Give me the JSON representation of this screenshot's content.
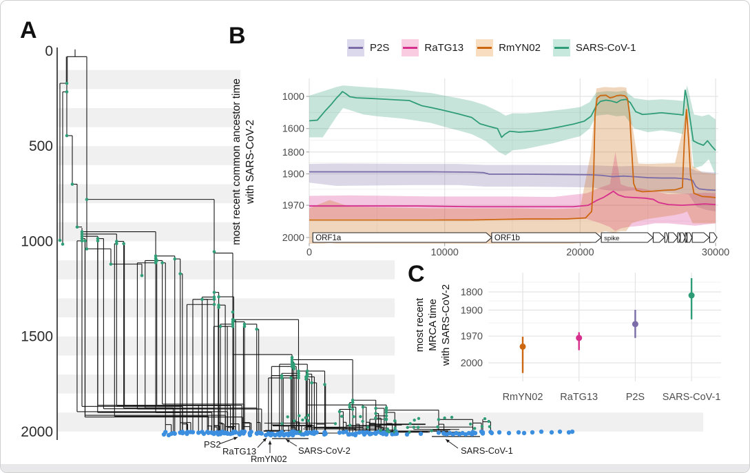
{
  "figure": {
    "panel_a_letter": "A",
    "panel_b_letter": "B",
    "panel_c_letter": "C"
  },
  "colors": {
    "p2s_line": "#7b6ca8",
    "p2s_fill": "#dcd9ec",
    "ratg13_line": "#d62e8c",
    "ratg13_fill": "#f9cce2",
    "rmyn02_line": "#cc660f",
    "rmyn02_fill": "#f8ddc0",
    "sars1_line": "#2e9c77",
    "sars1_fill": "#c7e8dc",
    "tip_blue": "#3c8ede",
    "node_green": "#2f9e77",
    "tree_line": "#141414",
    "grid_major": "#e3e3e3",
    "grid_minor": "#f1f1f1",
    "stripe": "#f0f0f0",
    "tick_text": "#4e4e4e",
    "axis_a_text": "#2b2b2b"
  },
  "legend": {
    "items": [
      {
        "label": "P2S",
        "line": "#7b6ca8",
        "fill": "#dcd9ec"
      },
      {
        "label": "RaTG13",
        "line": "#d62e8c",
        "fill": "#f9cce2"
      },
      {
        "label": "RmYN02",
        "line": "#cc660f",
        "fill": "#f8ddc0"
      },
      {
        "label": "SARS-CoV-1",
        "line": "#2e9c77",
        "fill": "#c7e8dc"
      }
    ]
  },
  "panel_b": {
    "ylabel_line1": "most recent common ancestor time",
    "ylabel_line2": "with SARS-CoV-2"
  },
  "panel_c": {
    "ylabel_line1": "most recent",
    "ylabel_line2": "MRCA time",
    "ylabel_line3": "with SARS-CoV-2"
  },
  "chart_data": [
    {
      "id": "panel_b_genome_scan",
      "type": "line",
      "title": "",
      "xlabel": "",
      "ylabel": "most recent common ancestor time with SARS-CoV-2",
      "x_ticks": [
        0,
        10000,
        20000,
        30000
      ],
      "x_minor_ticks": [
        5000,
        15000,
        25000
      ],
      "xlim": [
        0,
        30200
      ],
      "y_ticks": [
        1000,
        1600,
        1800,
        1900,
        1970,
        2000
      ],
      "y_minor_ticks": [
        1366,
        1716,
        1857,
        1942,
        1988
      ],
      "y_scale": "reversed log10(2021 - year)",
      "legend_position": "top",
      "grid": true,
      "series": [
        {
          "name": "SARS-CoV-1",
          "color": "#2e9c77",
          "x": [
            0,
            600,
            1200,
            1600,
            2000,
            2300,
            2450,
            2700,
            3000,
            3500,
            4500,
            5500,
            6500,
            7400,
            7900,
            8300,
            9000,
            10000,
            11000,
            12000,
            12600,
            13200,
            13900,
            14200,
            14450,
            14800,
            15500,
            16500,
            17500,
            18500,
            19500,
            20300,
            20800,
            21200,
            21500,
            21900,
            22300,
            22700,
            23000,
            23400,
            23700,
            24100,
            24600,
            25200,
            26000,
            26800,
            27300,
            27600,
            27750,
            27900,
            28100,
            28350,
            28700,
            29100,
            29400,
            29700,
            30000
          ],
          "y": [
            1500,
            1490,
            1330,
            1210,
            1050,
            930,
            855,
            920,
            1010,
            1040,
            1055,
            1075,
            1095,
            1110,
            1180,
            1230,
            1270,
            1330,
            1390,
            1450,
            1540,
            1570,
            1600,
            1690,
            1660,
            1630,
            1640,
            1630,
            1610,
            1580,
            1545,
            1505,
            1430,
            1230,
            1130,
            1100,
            1120,
            1160,
            1100,
            1080,
            1160,
            1350,
            1400,
            1390,
            1370,
            1390,
            1400,
            1410,
            810,
            1080,
            1450,
            1720,
            1740,
            1755,
            1720,
            1760,
            1790
          ],
          "band": {
            "x": [
              0,
              1000,
              2000,
              2500,
              3000,
              4000,
              5000,
              6000,
              7000,
              8000,
              9000,
              10000,
              11000,
              12000,
              13000,
              14000,
              14500,
              15000,
              16000,
              17000,
              18000,
              19000,
              20000,
              20700,
              21200,
              22000,
              22700,
              23300,
              24000,
              25000,
              26000,
              27000,
              27600,
              27900,
              28400,
              29000,
              29500,
              30000
            ],
            "lo": [
              980,
              850,
              700,
              640,
              660,
              700,
              730,
              760,
              800,
              860,
              900,
              980,
              1050,
              1120,
              1220,
              1350,
              1420,
              1380,
              1380,
              1360,
              1330,
              1300,
              1260,
              1150,
              880,
              840,
              860,
              830,
              1050,
              1100,
              1080,
              1100,
              1120,
              640,
              1400,
              1430,
              1400,
              1480
            ],
            "hi": [
              1690,
              1690,
              1440,
              1280,
              1320,
              1400,
              1430,
              1450,
              1470,
              1500,
              1530,
              1580,
              1620,
              1660,
              1720,
              1800,
              1820,
              1790,
              1780,
              1760,
              1740,
              1710,
              1680,
              1600,
              1420,
              1400,
              1430,
              1420,
              1600,
              1640,
              1620,
              1640,
              1660,
              1200,
              1880,
              1870,
              1840,
              1905
            ]
          }
        },
        {
          "name": "P2S",
          "color": "#7b6ca8",
          "x": [
            0,
            3000,
            6000,
            9000,
            12000,
            12900,
            13300,
            16000,
            19000,
            20800,
            21600,
            22400,
            23200,
            24000,
            25000,
            26000,
            27000,
            27900,
            28300,
            28550,
            28800,
            29400,
            30000
          ],
          "y": [
            1893,
            1893,
            1893,
            1893,
            1894,
            1896,
            1901,
            1901,
            1902,
            1903,
            1905,
            1909,
            1907,
            1909,
            1912,
            1913,
            1913,
            1916,
            1920,
            1936,
            1941,
            1943,
            1944
          ],
          "band": {
            "x": [
              0,
              2000,
              5000,
              8000,
              11000,
              13000,
              16000,
              19000,
              21000,
              22000,
              23000,
              24000,
              25000,
              26000,
              27000,
              28000,
              28600,
              29300,
              30000
            ],
            "lo": [
              1862,
              1860,
              1861,
              1862,
              1862,
              1866,
              1866,
              1867,
              1868,
              1870,
              1872,
              1870,
              1872,
              1874,
              1874,
              1876,
              1890,
              1893,
              1895
            ],
            "hi": [
              1926,
              1934,
              1933,
              1932,
              1932,
              1936,
              1936,
              1937,
              1938,
              1944,
              1946,
              1944,
              1946,
              1948,
              1950,
              1952,
              1972,
              1976,
              1978
            ]
          }
        },
        {
          "name": "RaTG13",
          "color": "#d62e8c",
          "x": [
            0,
            4000,
            8000,
            12000,
            16000,
            19500,
            20600,
            21200,
            21700,
            22100,
            22450,
            22800,
            23300,
            24000,
            24800,
            25400,
            25800,
            26500,
            27500,
            28500,
            29200,
            30000
          ],
          "y": [
            1971,
            1971,
            1971,
            1972,
            1972,
            1972,
            1970,
            1963,
            1958,
            1952,
            1946,
            1953,
            1957,
            1958,
            1959,
            1961,
            1966,
            1969,
            1970,
            1969,
            1968,
            1969
          ],
          "band": {
            "x": [
              0,
              3000,
              6000,
              9000,
              12000,
              15000,
              18000,
              20500,
              21500,
              22200,
              22600,
              23000,
              23500,
              24500,
              25500,
              26500,
              27500,
              28500,
              29200,
              30000
            ],
            "lo": [
              1955,
              1954,
              1955,
              1956,
              1956,
              1956,
              1957,
              1950,
              1938,
              1930,
              1800,
              1930,
              1936,
              1940,
              1946,
              1952,
              1951,
              1950,
              1949,
              1950
            ],
            "hi": [
              1986,
              1986,
              1986,
              1986,
              1987,
              1987,
              1987,
              1986,
              1990,
              1993,
              1996,
              1994,
              1993,
              1992,
              1990,
              1990,
              1991,
              1992,
              1991,
              1990
            ]
          }
        },
        {
          "name": "RmYN02",
          "color": "#cc660f",
          "x": [
            0,
            4000,
            8000,
            12000,
            16000,
            19000,
            20400,
            20850,
            21000,
            21100,
            21250,
            21500,
            21900,
            22200,
            22450,
            22700,
            23000,
            23300,
            23500,
            23650,
            23800,
            23950,
            24150,
            24600,
            25300,
            26200,
            27000,
            27550,
            27700,
            27850,
            28000,
            28150,
            28400,
            29000,
            29600,
            30000
          ],
          "y": [
            1987,
            1987,
            1987,
            1987,
            1986,
            1986,
            1985,
            1978,
            1900,
            1400,
            1050,
            975,
            965,
            1040,
            1020,
            980,
            965,
            985,
            1060,
            1400,
            1780,
            1928,
            1944,
            1947,
            1946,
            1944,
            1943,
            1938,
            1700,
            1310,
            1700,
            1905,
            1950,
            1956,
            1957,
            1958
          ],
          "band": {
            "x": [
              0,
              1500,
              3000,
              6000,
              9000,
              12000,
              15000,
              18000,
              20000,
              20800,
              21200,
              21800,
              22500,
              23000,
              23400,
              23800,
              24300,
              25000,
              26000,
              27000,
              27600,
              27900,
              28300,
              29000,
              30000
            ],
            "lo": [
              1974,
              1962,
              1972,
              1973,
              1974,
              1974,
              1974,
              1975,
              1974,
              1800,
              750,
              700,
              720,
              700,
              720,
              1500,
              1860,
              1862,
              1860,
              1858,
              1600,
              1100,
              1870,
              1895,
              1900
            ],
            "hi": [
              2004,
              2003,
              2004,
              2004,
              2004,
              2004,
              2004,
              2004,
              2003,
              2003,
              1998,
              1996,
              1997,
              1996,
              1996,
              1990,
              1988,
              1986,
              1984,
              1982,
              1980,
              1978,
              1990,
              1990,
              1990
            ]
          }
        }
      ],
      "gene_track": {
        "genes": [
          {
            "label": "ORF1a",
            "start": 266,
            "end": 13468
          },
          {
            "label": "ORF1b",
            "start": 13468,
            "end": 21555
          },
          {
            "label": "spike",
            "start": 21563,
            "end": 25384
          },
          {
            "label": "",
            "start": 25393,
            "end": 26220
          },
          {
            "label": "",
            "start": 26245,
            "end": 26472
          },
          {
            "label": "",
            "start": 26523,
            "end": 27191
          },
          {
            "label": "",
            "start": 27202,
            "end": 27387
          },
          {
            "label": "",
            "start": 27394,
            "end": 27759
          },
          {
            "label": "",
            "start": 27756,
            "end": 27887
          },
          {
            "label": "",
            "start": 27894,
            "end": 28259
          },
          {
            "label": "",
            "start": 28274,
            "end": 29533
          },
          {
            "label": "",
            "start": 29558,
            "end": 30100
          }
        ]
      }
    },
    {
      "id": "panel_c_mrca_pointrange",
      "type": "scatter",
      "title": "",
      "ylabel": "most recent MRCA time with SARS-CoV-2",
      "y_ticks": [
        1800,
        1900,
        1970,
        2000
      ],
      "y_minor_ticks": [
        1716,
        1857,
        1942,
        2008
      ],
      "y_scale": "reversed log10(2021 - year)",
      "categories": [
        "RmYN02",
        "RaTG13",
        "P2S",
        "SARS-CoV-1"
      ],
      "points": [
        {
          "name": "RmYN02",
          "estimate": 1985,
          "lower": 1971,
          "upper": 2006,
          "color": "#cc660f"
        },
        {
          "name": "RaTG13",
          "estimate": 1973,
          "lower": 1963,
          "upper": 1989,
          "color": "#d62e8c"
        },
        {
          "name": "P2S",
          "estimate": 1945,
          "lower": 1899,
          "upper": 1973,
          "color": "#7b6ca8"
        },
        {
          "name": "SARS-CoV-1",
          "estimate": 1824,
          "lower": 1672,
          "upper": 1932,
          "color": "#2e9c77"
        }
      ]
    },
    {
      "id": "panel_a_phylogeny",
      "type": "table",
      "description": "time-scaled phylogeny, ladder-like cascade; internal nodes green, sampled tips blue along year 2000",
      "time_axis_ticks": [
        0,
        500,
        1000,
        1500,
        2000
      ],
      "tip_annotations": [
        {
          "label": "PS2"
        },
        {
          "label": "RaTG13"
        },
        {
          "label": "RmYN02"
        },
        {
          "label": "SARS-CoV-2"
        },
        {
          "label": "SARS-CoV-1"
        }
      ]
    }
  ]
}
